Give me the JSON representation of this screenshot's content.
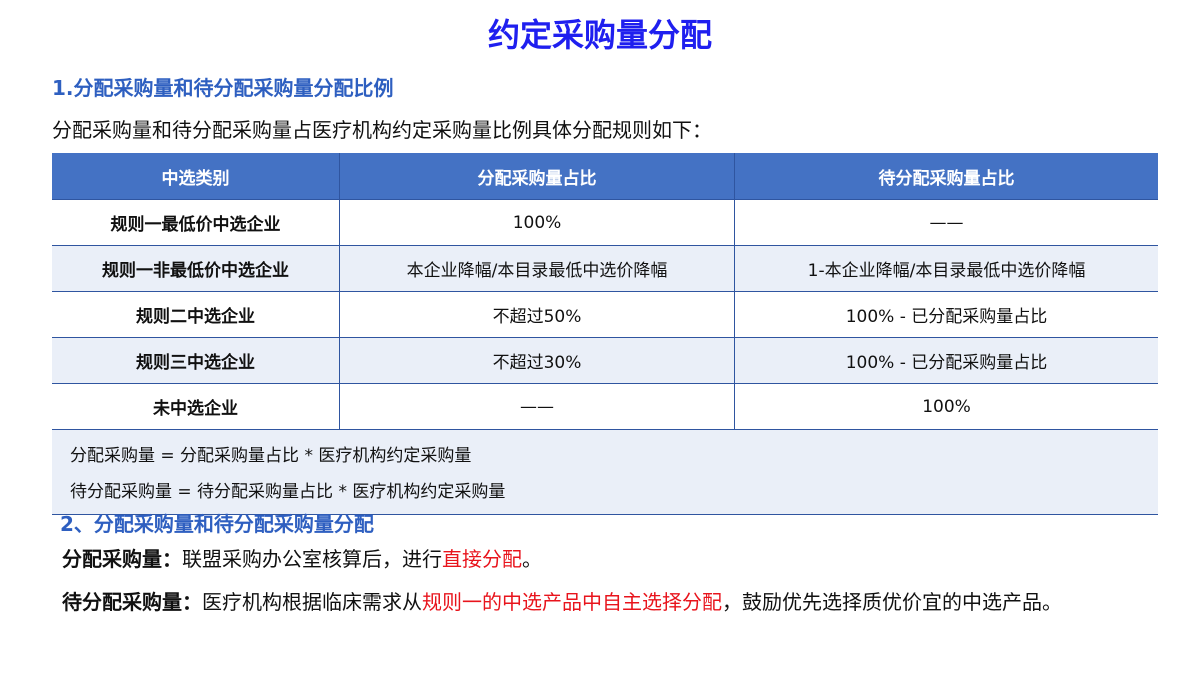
{
  "title": "约定采购量分配",
  "section1": {
    "heading": "1.分配采购量和待分配采购量分配比例",
    "intro": "分配采购量和待分配采购量占医疗机构约定采购量比例具体分配规则如下："
  },
  "table": {
    "headers": [
      "中选类别",
      "分配采购量占比",
      "待分配采购量占比"
    ],
    "rows": [
      [
        "规则一最低价中选企业",
        "100%",
        "——"
      ],
      [
        "规则一非最低价中选企业",
        "本企业降幅/本目录最低中选价降幅",
        "1-本企业降幅/本目录最低中选价降幅"
      ],
      [
        "规则二中选企业",
        "不超过50%",
        "100% - 已分配采购量占比"
      ],
      [
        "规则三中选企业",
        "不超过30%",
        "100% - 已分配采购量占比"
      ],
      [
        "未中选企业",
        "——",
        "100%"
      ]
    ],
    "notes": [
      "分配采购量 = 分配采购量占比 * 医疗机构约定采购量",
      "待分配采购量 = 待分配采购量占比 * 医疗机构约定采购量"
    ]
  },
  "section2": {
    "heading": "2、分配采购量和待分配采购量分配",
    "p1": {
      "label": "分配采购量：",
      "text": "联盟采购办公室核算后，进行",
      "highlight": "直接分配",
      "end": "。"
    },
    "p2": {
      "label": "待分配采购量：",
      "text": "医疗机构根据临床需求从",
      "highlight": "规则一的中选产品中自主选择分配",
      "end": "，鼓励优先选择质优价宜的中选产品。"
    }
  },
  "colors": {
    "title": "#1f1fef",
    "heading": "#2e5fc0",
    "table_header": "#4472c4",
    "highlight": "#e8141c"
  }
}
